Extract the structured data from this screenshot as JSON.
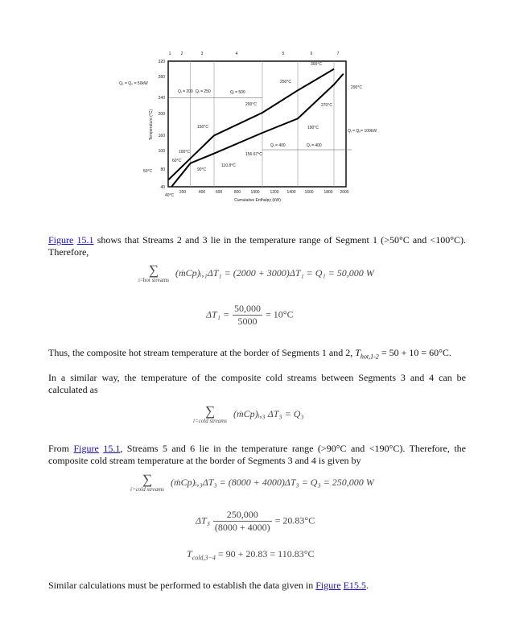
{
  "figure": {
    "segments": [
      "1",
      "2",
      "3",
      "4",
      "5",
      "6",
      "7"
    ],
    "y_ticks": [
      "320",
      "280",
      "240",
      "200",
      "160",
      "100",
      "80",
      "40"
    ],
    "x_ticks": [
      "200",
      "400",
      "600",
      "800",
      "1000",
      "1200",
      "1400",
      "1600",
      "1800",
      "2000"
    ],
    "x_label": "Cumulative Enthalpy (kW)",
    "y_label": "Temperature (°C)",
    "annotations": {
      "q_left": "Q₁ = Q₀ = 50kW",
      "q2": "Qᵢ = 200",
      "q3": "Qᵢ = 250",
      "q4": "Qᵢ = 500",
      "q5": "Qᵢ = 400",
      "q6": "Qᵢ = 400",
      "q_right": "Qᵢ = Qᵤ= 100kW",
      "t300": "300°C",
      "t250": "250°C",
      "t290": "290°C",
      "t200": "200°C",
      "t270": "270°C",
      "t150": "150°C",
      "t190": "190°C",
      "t100": "100°C",
      "t156": "156.67°C",
      "t60": "60°C",
      "t110": "110.8°C",
      "t90": "90°C",
      "t50": "50°C",
      "t40": "40°C"
    }
  },
  "text": {
    "p1_link1": "Figure",
    "p1_link2": "15.1",
    "p1_rest": " shows that Streams 2 and 3 lie in the temperature range of Segment 1 (>50°C and <100°C). Therefore,",
    "eq1_lim": "i=hot streams",
    "eq1_body": "(ṁCp)ᵢ,₁ΔT₁ = (2000 + 3000)ΔT₁ = Q₁ = 50,000 W",
    "eq2_lhs": "ΔT₁ =",
    "eq2_num": "50,000",
    "eq2_den": "5000",
    "eq2_rhs": "= 10°C",
    "p2_a": "Thus, the composite hot stream temperature at the border of Segments 1 and 2, ",
    "p2_T": "T",
    "p2_sub": "hot,1-2",
    "p2_b": " = 50 + 10 = 60°C.",
    "p3": "In a similar way, the temperature of the composite cold streams between Segments 3 and 4 can be calculated as",
    "eq3_lim": "i=cold streams",
    "eq3_body": "(ṁCp)ᵢ,₃ ΔT₃ = Q₃",
    "p4_a": "From ",
    "p4_link1": "Figure",
    "p4_link2": "15.1",
    "p4_b": ", Streams 5 and 6 lie in the temperature range (>90°C and <190°C). Therefore, the composite cold stream temperature at the border of Segments 3 and 4 is given by",
    "eq4_lim": "i=cold streams",
    "eq4_body": "(ṁCp)ᵢ,₃ΔT₃ = (8000 + 4000)ΔT₃ = Q₃ = 250,000 W",
    "eq5_lhs": "ΔT₃",
    "eq5_num": "250,000",
    "eq5_den": "(8000 + 4000)",
    "eq5_rhs": "= 20.83°C",
    "eq6_T": "T",
    "eq6_sub": "cold,3−4",
    "eq6_rhs": " = 90 + 20.83 = 110.83°C",
    "p5_a": "Similar calculations must be performed to establish the data given in ",
    "p5_link1": "Figure",
    "p5_link2": "E15.5",
    "p5_b": "."
  }
}
